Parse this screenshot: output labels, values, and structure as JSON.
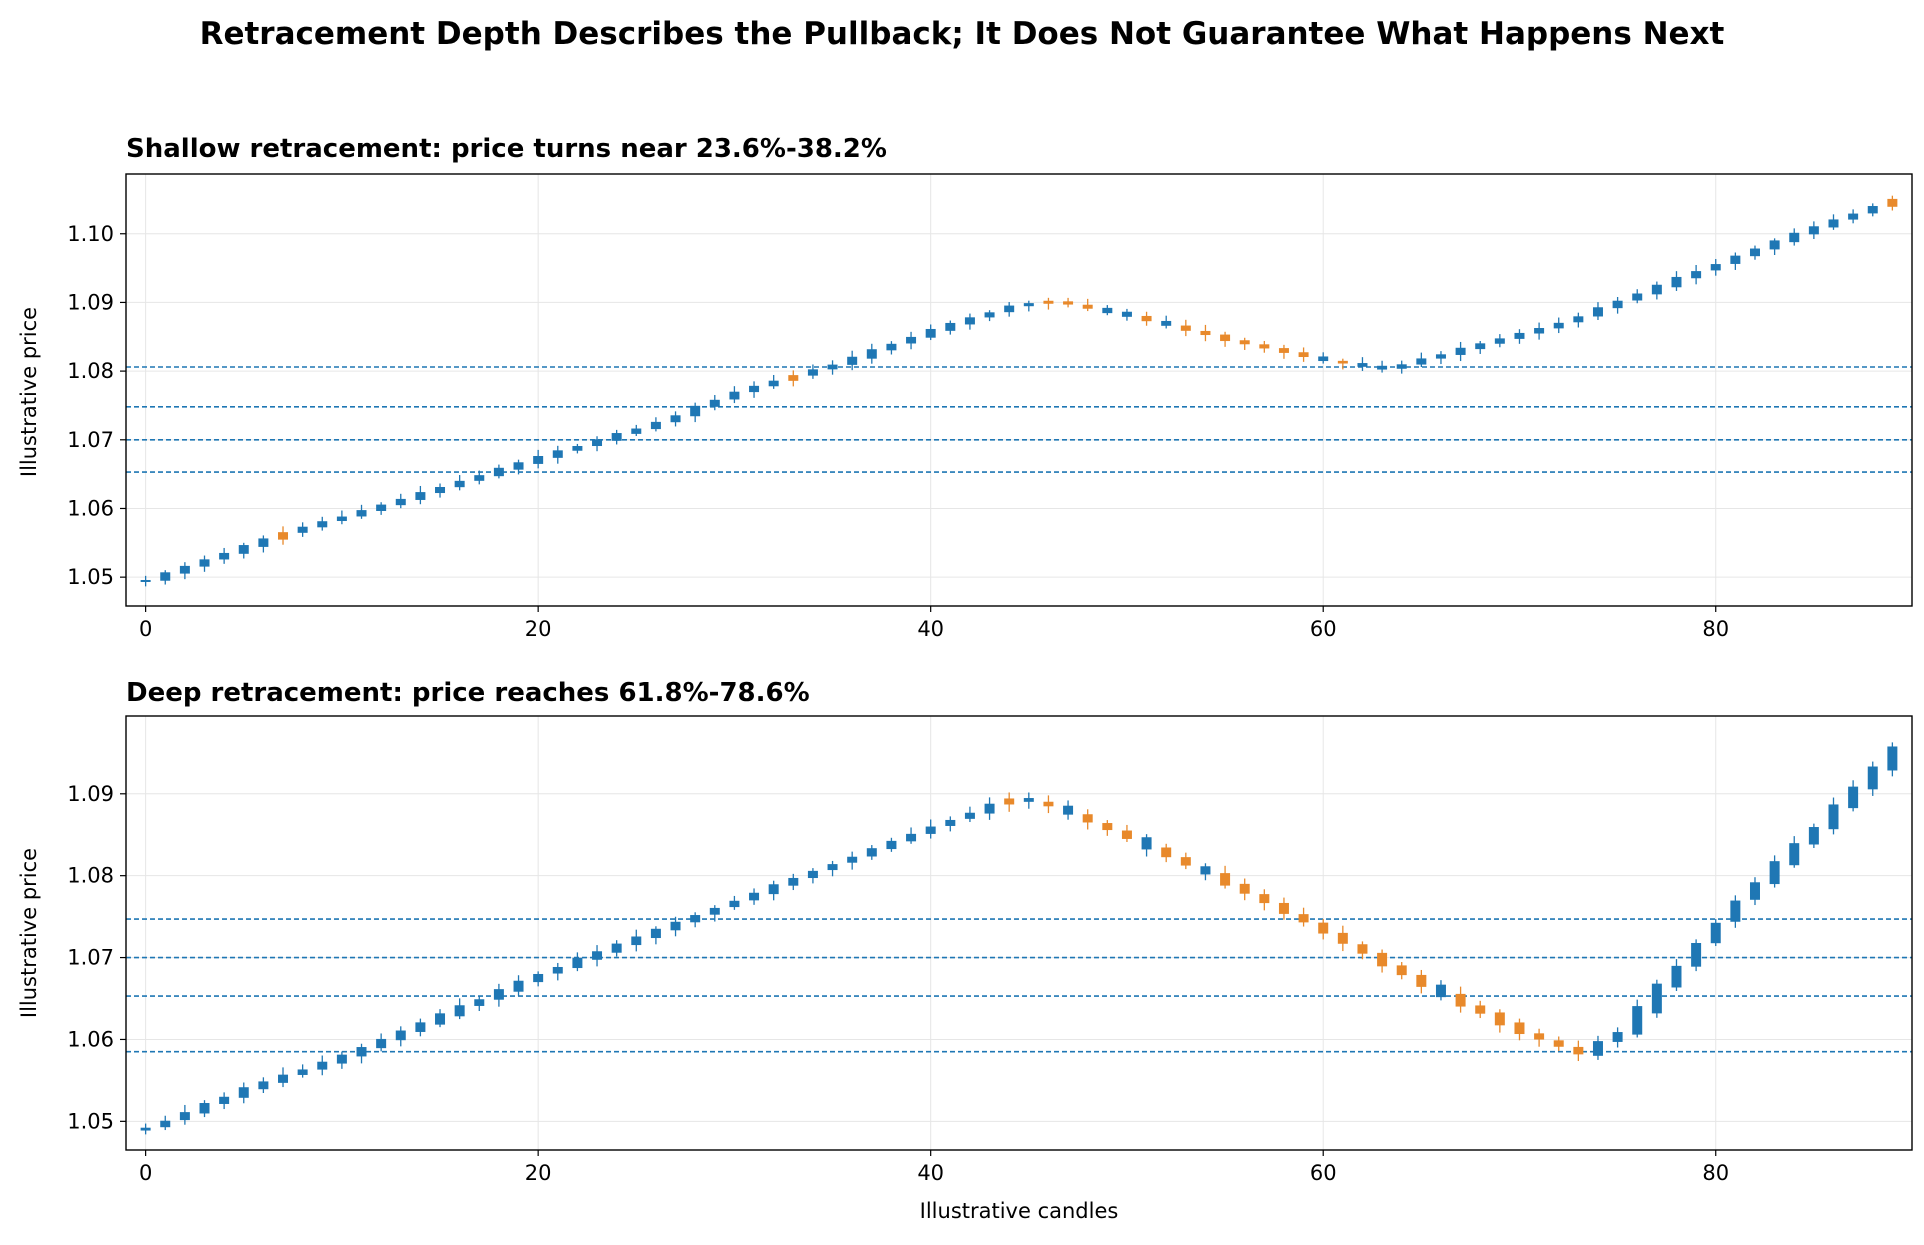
{
  "figure_title": "Retracement Depth Describes the Pullback; It Does Not Guarantee What Happens Next",
  "colors": {
    "up": "#1f77b4",
    "down": "#e8892b",
    "level_line": "#1f77b4",
    "grid": "#e6e6e6",
    "axes": "#000000"
  },
  "chart_data": [
    {
      "type": "candlestick",
      "title": "Shallow retracement: price turns near 23.6%-38.2%",
      "xlabel": "",
      "ylabel": "Illustrative price",
      "xlim": [
        -1,
        90
      ],
      "ylim": [
        1.0458,
        1.1087
      ],
      "xticks": [
        0,
        20,
        40,
        60,
        80
      ],
      "yticks": [
        1.05,
        1.06,
        1.07,
        1.08,
        1.09,
        1.1
      ],
      "ytick_labels": [
        "1.05",
        "1.06",
        "1.07",
        "1.08",
        "1.09",
        "1.10"
      ],
      "grid": true,
      "levels": [
        1.0806,
        1.0748,
        1.07,
        1.0653
      ],
      "waypoints": [
        [
          0,
          1.0496
        ],
        [
          7,
          1.0565
        ],
        [
          12,
          1.0605
        ],
        [
          20,
          1.0675
        ],
        [
          26,
          1.0725
        ],
        [
          30,
          1.077
        ],
        [
          35,
          1.081
        ],
        [
          40,
          1.086
        ],
        [
          44,
          1.0895
        ],
        [
          46,
          1.0902
        ],
        [
          50,
          1.088
        ],
        [
          55,
          1.0845
        ],
        [
          60,
          1.0815
        ],
        [
          63,
          1.0803
        ],
        [
          66,
          1.0825
        ],
        [
          72,
          1.087
        ],
        [
          78,
          1.0935
        ],
        [
          84,
          1.1
        ],
        [
          89,
          1.105
        ]
      ],
      "down_candles": [
        7,
        33,
        46,
        47,
        48,
        51,
        53,
        54,
        55,
        56,
        57,
        58,
        59,
        61,
        89
      ]
    },
    {
      "type": "candlestick",
      "title": "Deep retracement: price reaches 61.8%-78.6%",
      "xlabel": "Illustrative candles",
      "ylabel": "Illustrative price",
      "xlim": [
        -1,
        90
      ],
      "ylim": [
        1.0465,
        1.0995
      ],
      "xticks": [
        0,
        20,
        40,
        60,
        80
      ],
      "yticks": [
        1.05,
        1.06,
        1.07,
        1.08,
        1.09
      ],
      "ytick_labels": [
        "1.05",
        "1.06",
        "1.07",
        "1.08",
        "1.09"
      ],
      "grid": true,
      "levels": [
        1.0747,
        1.07,
        1.0653,
        1.0585
      ],
      "waypoints": [
        [
          0,
          1.0492
        ],
        [
          5,
          1.054
        ],
        [
          10,
          1.058
        ],
        [
          15,
          1.063
        ],
        [
          20,
          1.068
        ],
        [
          25,
          1.0725
        ],
        [
          30,
          1.077
        ],
        [
          35,
          1.0815
        ],
        [
          40,
          1.086
        ],
        [
          44,
          1.0895
        ],
        [
          46,
          1.0885
        ],
        [
          50,
          1.0845
        ],
        [
          55,
          1.079
        ],
        [
          60,
          1.073
        ],
        [
          65,
          1.0665
        ],
        [
          70,
          1.0608
        ],
        [
          73,
          1.0582
        ],
        [
          75,
          1.061
        ],
        [
          78,
          1.069
        ],
        [
          81,
          1.077
        ],
        [
          85,
          1.086
        ],
        [
          89,
          1.0955
        ]
      ],
      "down_candles": [
        44,
        46,
        48,
        49,
        50,
        52,
        53,
        55,
        56,
        57,
        58,
        59,
        60,
        61,
        62,
        63,
        64,
        65,
        67,
        68,
        69,
        70,
        71,
        72,
        73
      ]
    }
  ]
}
